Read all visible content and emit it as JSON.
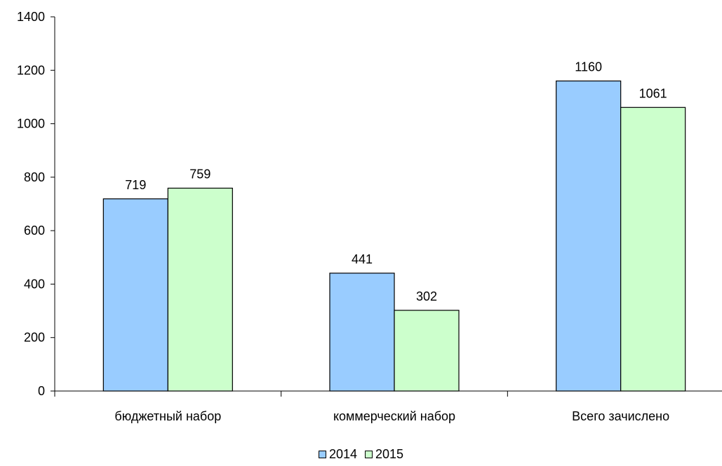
{
  "chart_data": {
    "type": "bar",
    "categories": [
      "бюджетный набор",
      "коммерческий набор",
      "Всего зачислено"
    ],
    "series": [
      {
        "name": "2014",
        "values": [
          719,
          441,
          1160
        ],
        "color": "#99ccff"
      },
      {
        "name": "2015",
        "values": [
          759,
          302,
          1061
        ],
        "color": "#ccffcc"
      }
    ],
    "title": "",
    "xlabel": "",
    "ylabel": "",
    "ylim": [
      0,
      1400
    ],
    "yticks": [
      0,
      200,
      400,
      600,
      800,
      1000,
      1200,
      1400
    ],
    "data_labels": true,
    "grid": false,
    "legend_position": "bottom"
  }
}
